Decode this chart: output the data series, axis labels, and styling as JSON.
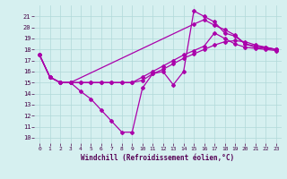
{
  "background_color": "#d6f0f0",
  "grid_color": "#b0d8d8",
  "line_color": "#aa00aa",
  "marker": "D",
  "markersize": 2.0,
  "linewidth": 0.9,
  "xlim": [
    -0.5,
    23.5
  ],
  "ylim": [
    9.5,
    22.0
  ],
  "xticks": [
    0,
    1,
    2,
    3,
    4,
    5,
    6,
    7,
    8,
    9,
    10,
    11,
    12,
    13,
    14,
    15,
    16,
    17,
    18,
    19,
    20,
    21,
    22,
    23
  ],
  "yticks": [
    10,
    11,
    12,
    13,
    14,
    15,
    16,
    17,
    18,
    19,
    20,
    21
  ],
  "xlabel": "Windchill (Refroidissement éolien,°C)",
  "lines": [
    {
      "x": [
        0,
        1,
        2,
        3,
        4,
        5,
        6,
        7,
        8,
        9,
        10,
        11,
        12,
        13,
        14,
        15,
        16,
        17,
        18,
        19,
        20,
        21,
        22,
        23
      ],
      "y": [
        17.5,
        15.5,
        15.0,
        15.0,
        14.2,
        13.5,
        12.5,
        11.5,
        10.5,
        10.5,
        14.5,
        15.8,
        16.0,
        14.8,
        16.0,
        21.5,
        21.0,
        20.5,
        19.5,
        19.2,
        18.5,
        18.2,
        18.1,
        18.0
      ]
    },
    {
      "x": [
        0,
        1,
        2,
        3,
        4,
        5,
        6,
        7,
        8,
        9,
        10,
        11,
        12,
        13,
        14,
        15,
        16,
        17,
        18,
        19,
        20,
        21,
        22,
        23
      ],
      "y": [
        17.5,
        15.5,
        15.0,
        15.0,
        15.0,
        15.0,
        15.0,
        15.0,
        15.0,
        15.0,
        15.5,
        16.0,
        16.5,
        17.0,
        17.5,
        17.9,
        18.3,
        19.5,
        19.0,
        18.5,
        18.2,
        18.1,
        18.0,
        17.9
      ]
    },
    {
      "x": [
        0,
        1,
        2,
        3,
        4,
        5,
        6,
        7,
        8,
        9,
        10,
        11,
        12,
        13,
        14,
        15,
        16,
        17,
        18,
        19,
        20,
        21,
        22,
        23
      ],
      "y": [
        17.5,
        15.5,
        15.0,
        15.0,
        15.0,
        15.0,
        15.0,
        15.0,
        15.0,
        15.0,
        15.2,
        15.8,
        16.2,
        16.7,
        17.2,
        17.6,
        18.0,
        18.4,
        18.7,
        18.8,
        18.7,
        18.4,
        18.2,
        18.0
      ]
    },
    {
      "x": [
        0,
        1,
        2,
        3,
        15,
        16,
        17,
        18,
        19,
        20,
        21,
        22,
        23
      ],
      "y": [
        17.5,
        15.5,
        15.0,
        15.0,
        20.3,
        20.7,
        20.2,
        19.8,
        19.3,
        18.5,
        18.3,
        18.2,
        18.0
      ]
    }
  ]
}
